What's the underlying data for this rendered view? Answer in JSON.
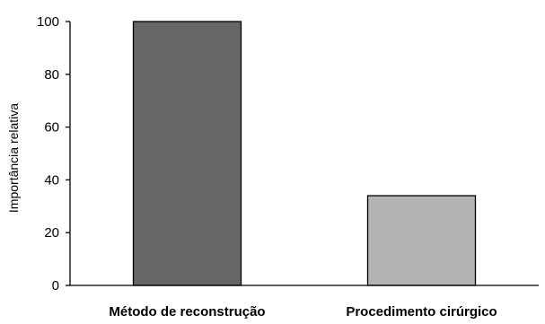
{
  "chart_data": {
    "type": "bar",
    "title": "",
    "xlabel": "",
    "ylabel": "Importância relativa",
    "categories": [
      "Método de reconstrução",
      "Procedimento cirúrgico"
    ],
    "values": [
      100,
      34
    ],
    "colors": [
      "#666666",
      "#b3b3b3"
    ],
    "ylim": [
      0,
      100
    ],
    "yticks": [
      0,
      20,
      40,
      60,
      80,
      100
    ],
    "grid": false,
    "legend": "none"
  }
}
